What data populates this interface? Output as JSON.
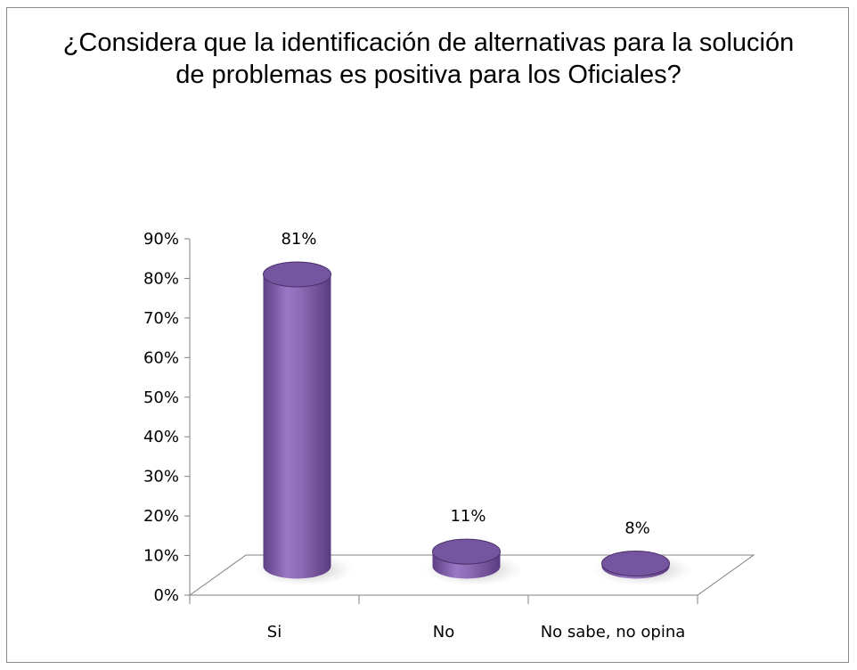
{
  "chart_data": {
    "type": "bar",
    "title_lines": [
      "¿Considera que la identificación de alternativas  para la solución",
      "de problemas es positiva para los Oficiales?"
    ],
    "categories": [
      "Si",
      "No",
      "No sabe, no opina"
    ],
    "values": [
      81,
      11,
      8
    ],
    "data_labels": [
      "81%",
      "11%",
      "8%"
    ],
    "ylim": [
      0,
      90
    ],
    "y_ticks": [
      0,
      10,
      20,
      30,
      40,
      50,
      60,
      70,
      80,
      90
    ],
    "y_tick_labels": [
      "0%",
      "10%",
      "20%",
      "30%",
      "40%",
      "50%",
      "60%",
      "70%",
      "80%",
      "90%"
    ],
    "grid": false,
    "legend": "none",
    "style": "3d-cylinder",
    "colors": {
      "bar_fill": "#8e6bb5",
      "bar_dark": "#5f3f86",
      "bar_light": "#a98ad0",
      "top_fill": "#7655a0",
      "axis": "#808080"
    }
  }
}
